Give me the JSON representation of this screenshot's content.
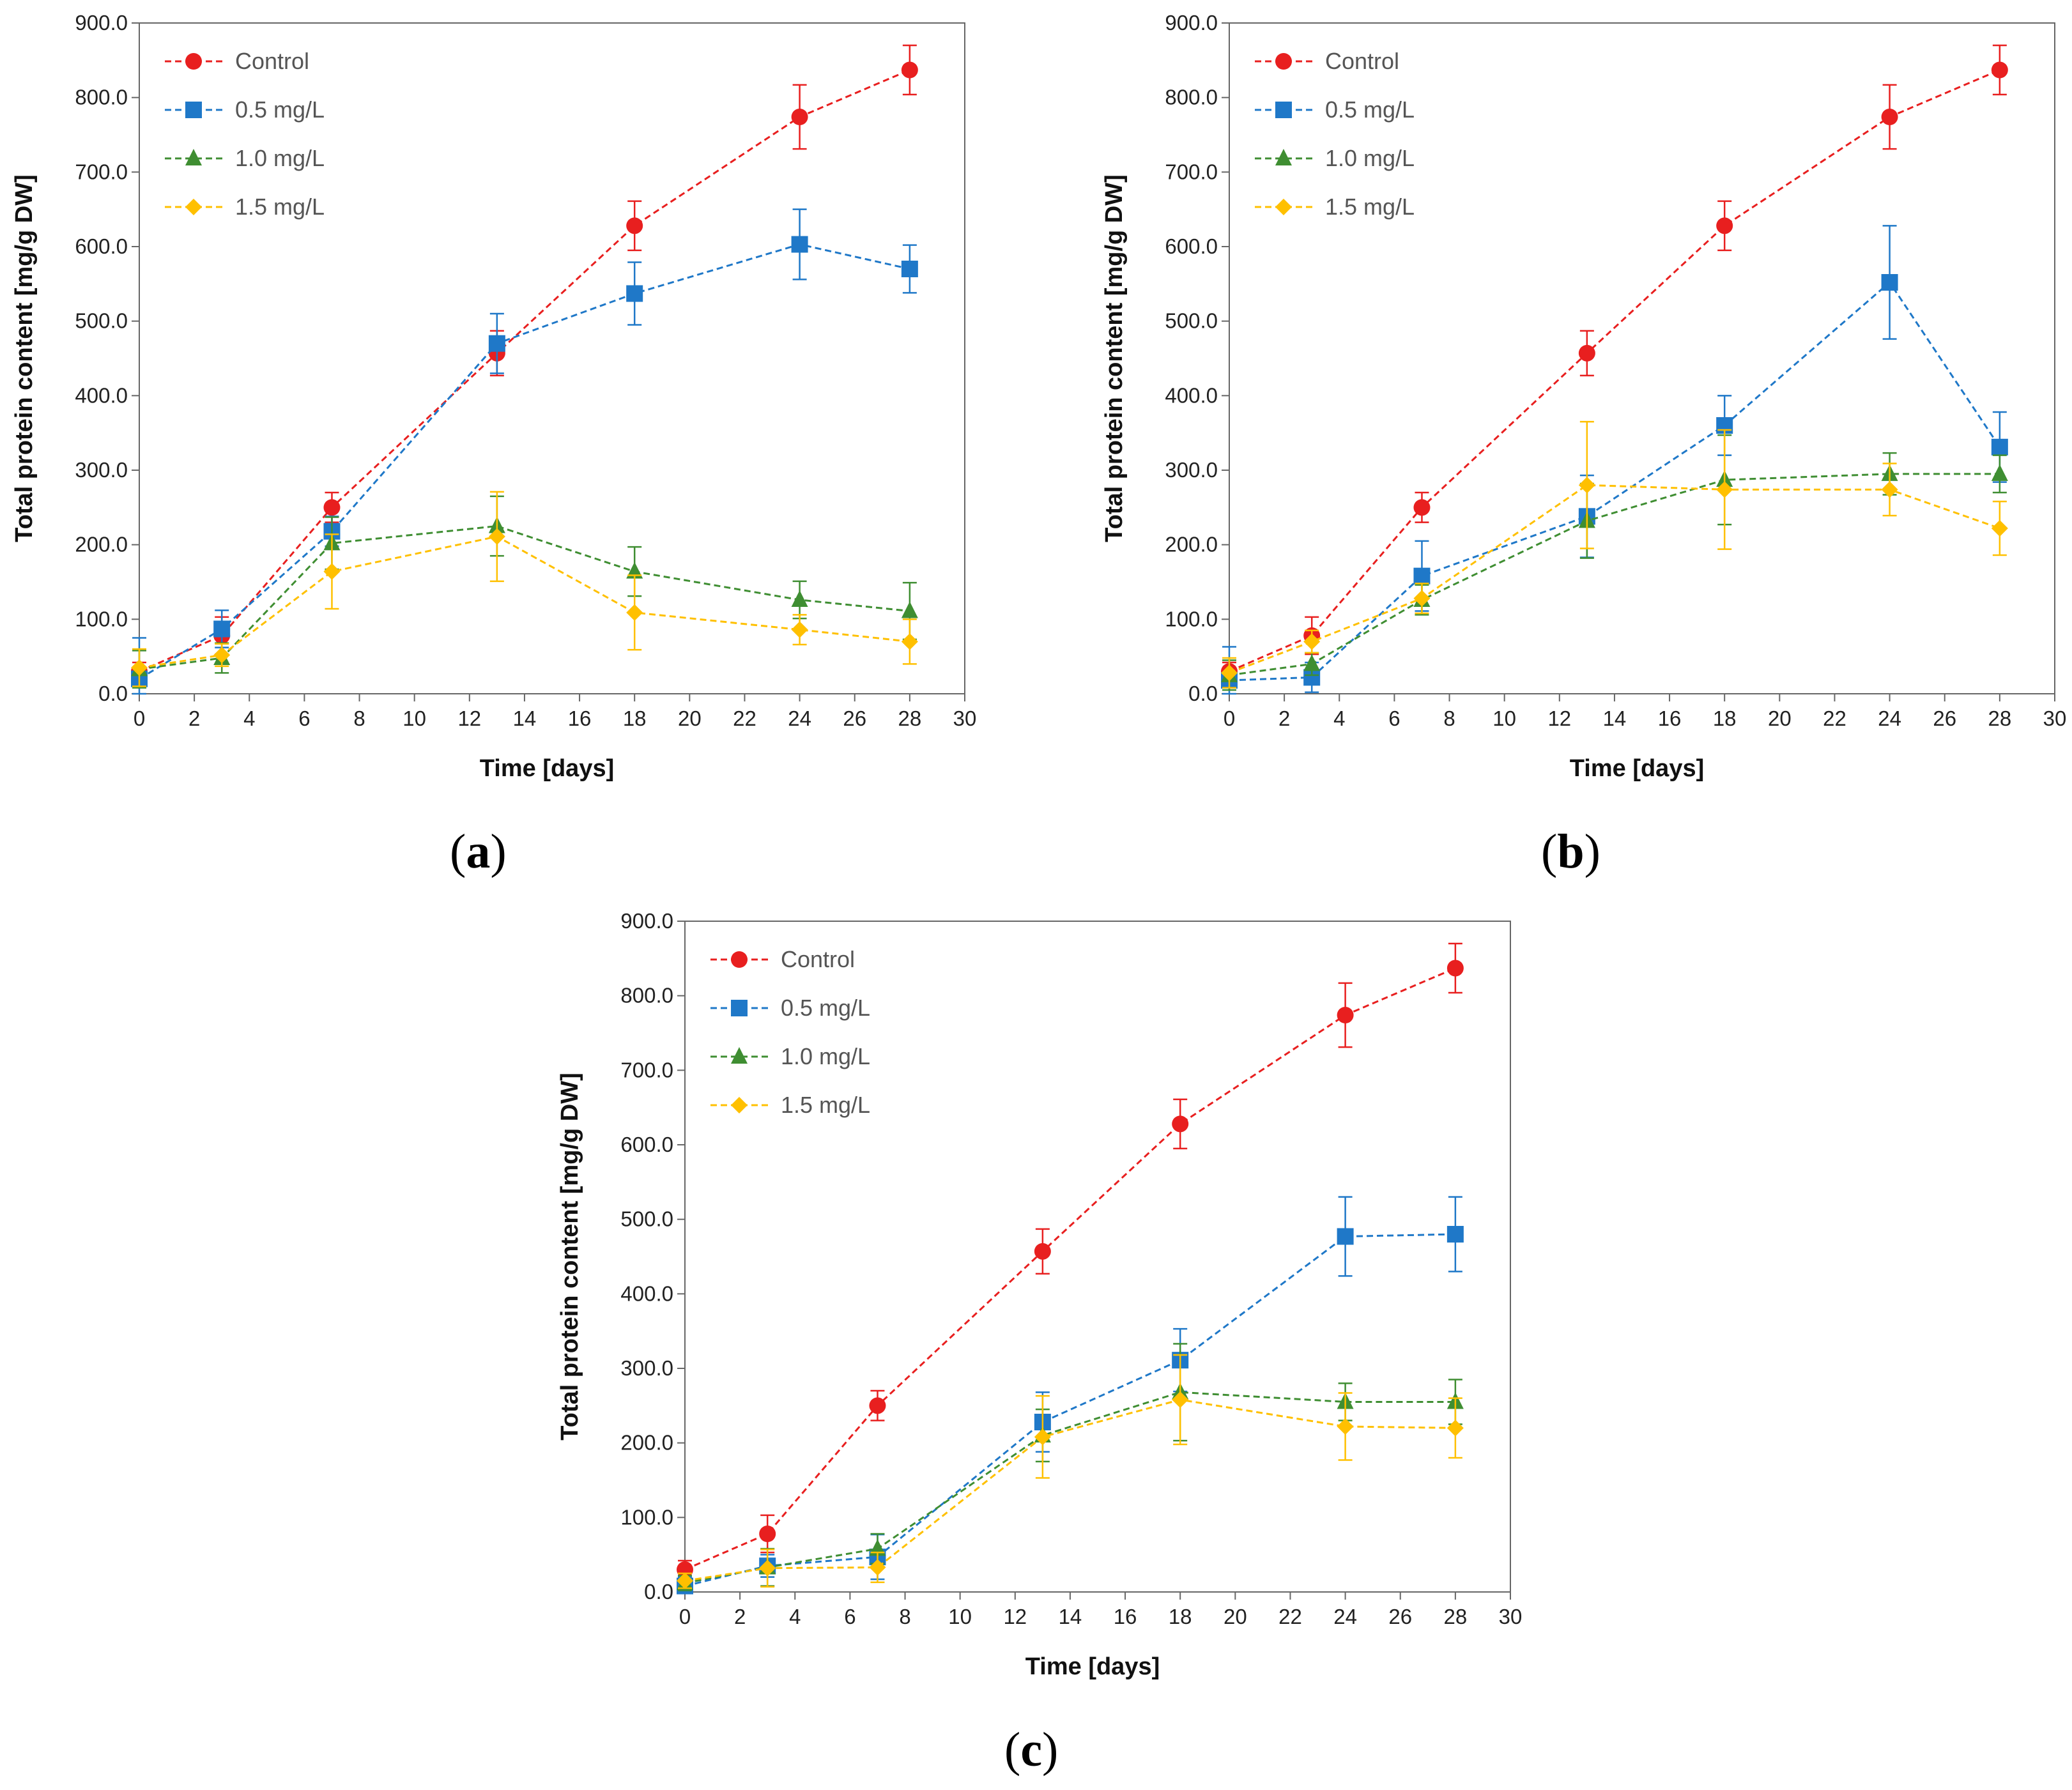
{
  "colors": {
    "Control": "#e81f1f",
    "0.5 mg/L": "#1f78c8",
    "1.0 mg/L": "#3f8e32",
    "1.5 mg/L": "#ffc000"
  },
  "markers": {
    "Control": "circle",
    "0.5 mg/L": "square",
    "1.0 mg/L": "triangle",
    "1.5 mg/L": "diamond"
  },
  "chart_data": [
    {
      "type": "line",
      "panel": "(a)",
      "panel_letter": "a",
      "xlabel": "Time [days]",
      "ylabel": "Total protein content [mg/g DW]",
      "xlim": [
        0,
        30
      ],
      "ylim": [
        0,
        900
      ],
      "xticks": [
        0,
        2,
        4,
        6,
        8,
        10,
        12,
        14,
        16,
        18,
        20,
        22,
        24,
        26,
        28,
        30
      ],
      "yticks": [
        "0.0",
        "100.0",
        "200.0",
        "300.0",
        "400.0",
        "500.0",
        "600.0",
        "700.0",
        "800.0",
        "900.0"
      ],
      "legend_position": "top-left",
      "x": [
        0,
        3,
        7,
        13,
        18,
        24,
        28
      ],
      "series": [
        {
          "name": "Control",
          "values": [
            30,
            78,
            250,
            457,
            628,
            774,
            837
          ],
          "errors": [
            12,
            25,
            20,
            30,
            33,
            43,
            33
          ]
        },
        {
          "name": "0.5 mg/L",
          "values": [
            20,
            87,
            218,
            470,
            537,
            603,
            570
          ],
          "errors": [
            55,
            25,
            20,
            40,
            42,
            47,
            32
          ]
        },
        {
          "name": "1.0 mg/L",
          "values": [
            33,
            48,
            202,
            225,
            164,
            126,
            111
          ],
          "errors": [
            25,
            20,
            35,
            40,
            33,
            25,
            38
          ]
        },
        {
          "name": "1.5 mg/L",
          "values": [
            35,
            52,
            164,
            211,
            109,
            86,
            70
          ],
          "errors": [
            25,
            15,
            50,
            60,
            50,
            20,
            30
          ]
        }
      ]
    },
    {
      "type": "line",
      "panel": "(b)",
      "panel_letter": "b",
      "xlabel": "Time [days]",
      "ylabel": "Total protein content [mg/g DW]",
      "xlim": [
        0,
        30
      ],
      "ylim": [
        0,
        900
      ],
      "xticks": [
        0,
        2,
        4,
        6,
        8,
        10,
        12,
        14,
        16,
        18,
        20,
        22,
        24,
        26,
        28,
        30
      ],
      "yticks": [
        "0.0",
        "100.0",
        "200.0",
        "300.0",
        "400.0",
        "500.0",
        "600.0",
        "700.0",
        "800.0",
        "900.0"
      ],
      "legend_position": "top-left",
      "x": [
        0,
        3,
        7,
        13,
        18,
        24,
        28
      ],
      "series": [
        {
          "name": "Control",
          "values": [
            30,
            78,
            250,
            457,
            628,
            774,
            837
          ],
          "errors": [
            12,
            25,
            20,
            30,
            33,
            43,
            33
          ]
        },
        {
          "name": "0.5 mg/L",
          "values": [
            18,
            22,
            158,
            238,
            360,
            552,
            331
          ],
          "errors": [
            45,
            20,
            47,
            55,
            40,
            76,
            47
          ]
        },
        {
          "name": "1.0 mg/L",
          "values": [
            25,
            40,
            126,
            232,
            287,
            295,
            295
          ],
          "errors": [
            20,
            15,
            20,
            50,
            60,
            28,
            25
          ]
        },
        {
          "name": "1.5 mg/L",
          "values": [
            28,
            70,
            128,
            280,
            274,
            274,
            222
          ],
          "errors": [
            20,
            15,
            20,
            85,
            80,
            35,
            36
          ]
        }
      ]
    },
    {
      "type": "line",
      "panel": "(c)",
      "panel_letter": "c",
      "xlabel": "Time [days]",
      "ylabel": "Total protein content [mg/g DW]",
      "xlim": [
        0,
        30
      ],
      "ylim": [
        0,
        900
      ],
      "xticks": [
        0,
        2,
        4,
        6,
        8,
        10,
        12,
        14,
        16,
        18,
        20,
        22,
        24,
        26,
        28,
        30
      ],
      "yticks": [
        "0.0",
        "100.0",
        "200.0",
        "300.0",
        "400.0",
        "500.0",
        "600.0",
        "700.0",
        "800.0",
        "900.0"
      ],
      "legend_position": "top-left",
      "x": [
        0,
        3,
        7,
        13,
        18,
        24,
        28
      ],
      "series": [
        {
          "name": "Control",
          "values": [
            30,
            78,
            250,
            457,
            628,
            774,
            837
          ],
          "errors": [
            12,
            25,
            20,
            30,
            33,
            43,
            33
          ]
        },
        {
          "name": "0.5 mg/L",
          "values": [
            8,
            35,
            47,
            228,
            311,
            477,
            480
          ],
          "errors": [
            12,
            15,
            30,
            40,
            42,
            53,
            50
          ]
        },
        {
          "name": "1.0 mg/L",
          "values": [
            12,
            33,
            58,
            210,
            268,
            255,
            255
          ],
          "errors": [
            10,
            25,
            20,
            35,
            65,
            25,
            30
          ]
        },
        {
          "name": "1.5 mg/L",
          "values": [
            15,
            32,
            33,
            208,
            258,
            222,
            220
          ],
          "errors": [
            10,
            25,
            20,
            55,
            60,
            45,
            40
          ]
        }
      ]
    }
  ]
}
